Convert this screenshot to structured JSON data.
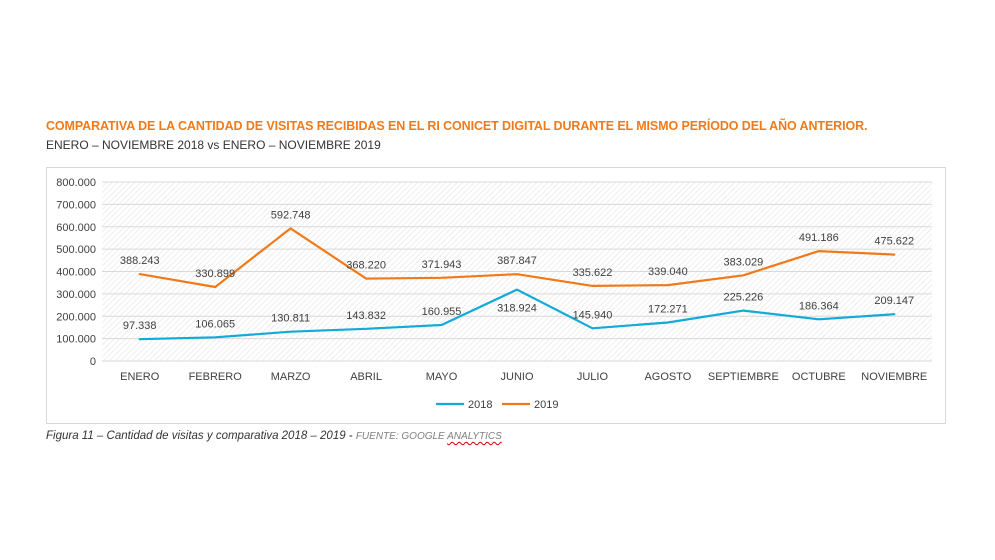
{
  "title": "COMPARATIVA DE LA CANTIDAD DE VISITAS RECIBIDAS EN EL RI CONICET DIGITAL DURANTE EL MISMO PERÍODO DEL AÑO ANTERIOR.",
  "subtitle": "ENERO – NOVIEMBRE 2018 vs ENERO – NOVIEMBRE 2019",
  "caption": {
    "text": "Figura 11 – Cantidad de visitas y comparativa 2018 – 2019 - ",
    "source_label": "Fuente: Google ",
    "source_word": "Analytics"
  },
  "chart_data": {
    "type": "line",
    "categories": [
      "ENERO",
      "FEBRERO",
      "MARZO",
      "ABRIL",
      "MAYO",
      "JUNIO",
      "JULIO",
      "AGOSTO",
      "SEPTIEMBRE",
      "OCTUBRE",
      "NOVIEMBRE"
    ],
    "series": [
      {
        "name": "2018",
        "color": "#13a9d8",
        "values": [
          97338,
          106065,
          130811,
          143832,
          160955,
          318924,
          145940,
          172271,
          225226,
          186364,
          209147
        ],
        "labels": [
          "97.338",
          "106.065",
          "130.811",
          "143.832",
          "160.955",
          "318.924",
          "145.940",
          "172.271",
          "225.226",
          "186.364",
          "209.147"
        ]
      },
      {
        "name": "2019",
        "color": "#f07a1a",
        "values": [
          388243,
          330899,
          592748,
          368220,
          371943,
          387847,
          335622,
          339040,
          383029,
          491186,
          475622
        ],
        "labels": [
          "388.243",
          "330.899",
          "592.748",
          "368.220",
          "371.943",
          "387.847",
          "335.622",
          "339.040",
          "383.029",
          "491.186",
          "475.622"
        ]
      }
    ],
    "yticks": [
      0,
      100000,
      200000,
      300000,
      400000,
      500000,
      600000,
      700000,
      800000
    ],
    "ytick_labels": [
      "0",
      "100.000",
      "200.000",
      "300.000",
      "400.000",
      "500.000",
      "600.000",
      "700.000",
      "800.000"
    ],
    "ylim": [
      0,
      800000
    ],
    "grid": "hatched",
    "legend": "bottom"
  }
}
